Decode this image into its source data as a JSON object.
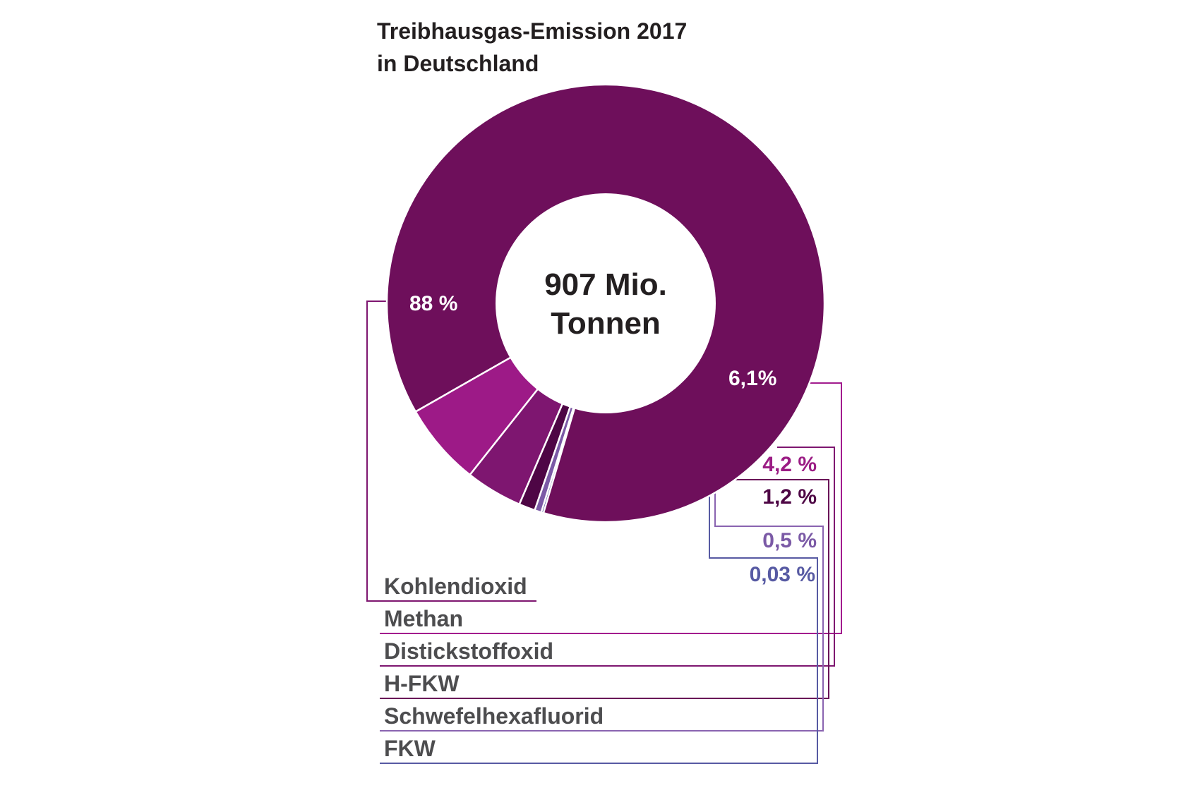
{
  "chart_data": {
    "type": "pie",
    "title_lines": [
      "Treibhausgas-Emission 2017",
      "in Deutschland"
    ],
    "center_label_lines": [
      "907 Mio.",
      "Tonnen"
    ],
    "categories": [
      "Kohlendioxid",
      "Methan",
      "Distickstoffoxid",
      "H-FKW",
      "Schwefelhexafluorid",
      "FKW"
    ],
    "values": [
      88,
      6.1,
      4.2,
      1.2,
      0.5,
      0.03
    ],
    "value_labels": [
      "88 %",
      "6,1%",
      "4,2 %",
      "1,2 %",
      "0,5 %",
      "0,03 %"
    ],
    "colors": [
      "#6e0f5b",
      "#9d1a87",
      "#7e1670",
      "#4e0645",
      "#7b5aa6",
      "#575aa3"
    ],
    "label_colors": [
      "#ffffff",
      "#ffffff",
      "#9b1c84",
      "#4e0645",
      "#7b5aa6",
      "#575aa3"
    ],
    "legend_line_colors": [
      "#7e1670",
      "#a21c8e",
      "#7e1670",
      "#6a1158",
      "#8a64b0",
      "#575aa3"
    ],
    "legend_placement": "bottom-left"
  }
}
